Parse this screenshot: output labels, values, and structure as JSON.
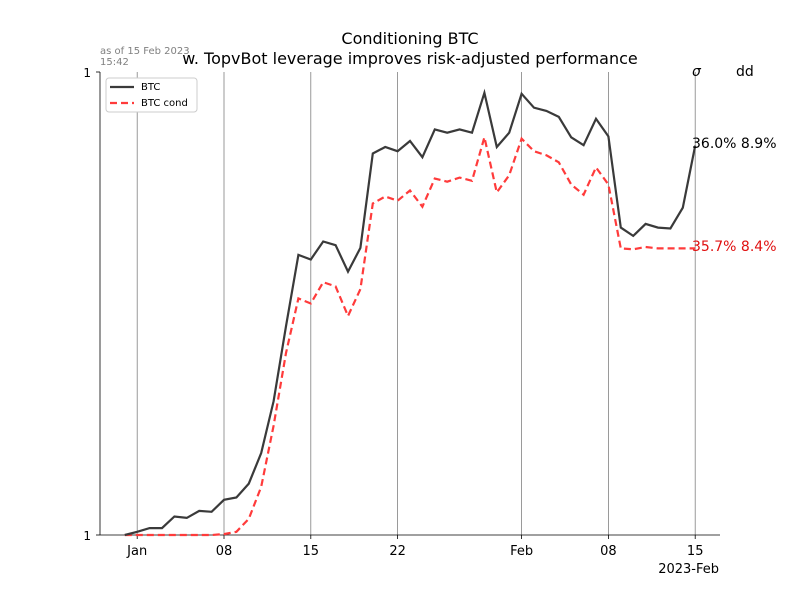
{
  "header": {
    "title_line1": "Conditioning BTC",
    "title_line2": "w. TopvBot leverage improves risk-adjusted performance",
    "timestamp_line1": "as of 15 Feb 2023",
    "timestamp_line2": "15:42"
  },
  "stats": {
    "sigma_header": "σ",
    "dd_header": "dd",
    "btc_text": "36.0%  8.9%",
    "cond_text": "35.7%  8.4%"
  },
  "colors": {
    "btc": "#3a3a3a",
    "cond": "#ff3b3b",
    "cond_text": "#e01010",
    "grid": "#808080"
  },
  "chart_data": {
    "type": "line",
    "x_tick_labels": [
      "Jan",
      "08",
      "15",
      "22",
      "Feb",
      "08",
      "15"
    ],
    "x_tick_dates": [
      "2023-01-01",
      "2023-01-08",
      "2023-01-15",
      "2023-01-22",
      "2023-02-01",
      "2023-02-08",
      "2023-02-15"
    ],
    "x_axis_label": "2023-Feb",
    "y_tick_labels": [
      "1",
      "1"
    ],
    "xlim": [
      "2022-12-29",
      "2023-02-17"
    ],
    "ylim": [
      1.0,
      2.0
    ],
    "grid": "vertical lines at x ticks",
    "legend_position": "top-left",
    "series": [
      {
        "name": "BTC",
        "style": "solid",
        "x": [
          "2022-12-31",
          "2023-01-01",
          "2023-01-02",
          "2023-01-03",
          "2023-01-04",
          "2023-01-05",
          "2023-01-06",
          "2023-01-07",
          "2023-01-08",
          "2023-01-09",
          "2023-01-10",
          "2023-01-11",
          "2023-01-12",
          "2023-01-13",
          "2023-01-14",
          "2023-01-15",
          "2023-01-16",
          "2023-01-17",
          "2023-01-18",
          "2023-01-19",
          "2023-01-20",
          "2023-01-21",
          "2023-01-22",
          "2023-01-23",
          "2023-01-24",
          "2023-01-25",
          "2023-01-26",
          "2023-01-27",
          "2023-01-28",
          "2023-01-29",
          "2023-01-30",
          "2023-01-31",
          "2023-02-01",
          "2023-02-02",
          "2023-02-03",
          "2023-02-04",
          "2023-02-05",
          "2023-02-06",
          "2023-02-07",
          "2023-02-08",
          "2023-02-09",
          "2023-02-10",
          "2023-02-11",
          "2023-02-12",
          "2023-02-13",
          "2023-02-14",
          "2023-02-15"
        ],
        "values": [
          1.0,
          1.007,
          1.015,
          1.015,
          1.04,
          1.037,
          1.052,
          1.05,
          1.076,
          1.081,
          1.111,
          1.177,
          1.289,
          1.451,
          1.605,
          1.595,
          1.634,
          1.626,
          1.569,
          1.62,
          1.824,
          1.838,
          1.829,
          1.851,
          1.816,
          1.876,
          1.869,
          1.876,
          1.869,
          1.955,
          1.838,
          1.869,
          1.953,
          1.923,
          1.916,
          1.903,
          1.859,
          1.842,
          1.899,
          1.861,
          1.664,
          1.646,
          1.672,
          1.664,
          1.662,
          1.707,
          1.841
        ]
      },
      {
        "name": "BTC cond",
        "style": "dashed",
        "x": [
          "2022-12-31",
          "2023-01-01",
          "2023-01-02",
          "2023-01-03",
          "2023-01-04",
          "2023-01-05",
          "2023-01-06",
          "2023-01-07",
          "2023-01-08",
          "2023-01-09",
          "2023-01-10",
          "2023-01-11",
          "2023-01-12",
          "2023-01-13",
          "2023-01-14",
          "2023-01-15",
          "2023-01-16",
          "2023-01-17",
          "2023-01-18",
          "2023-01-19",
          "2023-01-20",
          "2023-01-21",
          "2023-01-22",
          "2023-01-23",
          "2023-01-24",
          "2023-01-25",
          "2023-01-26",
          "2023-01-27",
          "2023-01-28",
          "2023-01-29",
          "2023-01-30",
          "2023-01-31",
          "2023-02-01",
          "2023-02-02",
          "2023-02-03",
          "2023-02-04",
          "2023-02-05",
          "2023-02-06",
          "2023-02-07",
          "2023-02-08",
          "2023-02-09",
          "2023-02-10",
          "2023-02-11",
          "2023-02-12",
          "2023-02-13",
          "2023-02-14",
          "2023-02-15"
        ],
        "values": [
          1.0,
          1.0,
          1.0,
          1.0,
          1.0,
          1.0,
          1.0,
          1.0,
          1.002,
          1.007,
          1.035,
          1.104,
          1.236,
          1.393,
          1.511,
          1.5,
          1.546,
          1.537,
          1.473,
          1.531,
          1.716,
          1.731,
          1.722,
          1.744,
          1.709,
          1.77,
          1.763,
          1.772,
          1.765,
          1.859,
          1.74,
          1.777,
          1.856,
          1.829,
          1.82,
          1.805,
          1.757,
          1.735,
          1.794,
          1.757,
          1.619,
          1.617,
          1.622,
          1.619,
          1.619,
          1.619,
          1.619
        ]
      }
    ]
  }
}
